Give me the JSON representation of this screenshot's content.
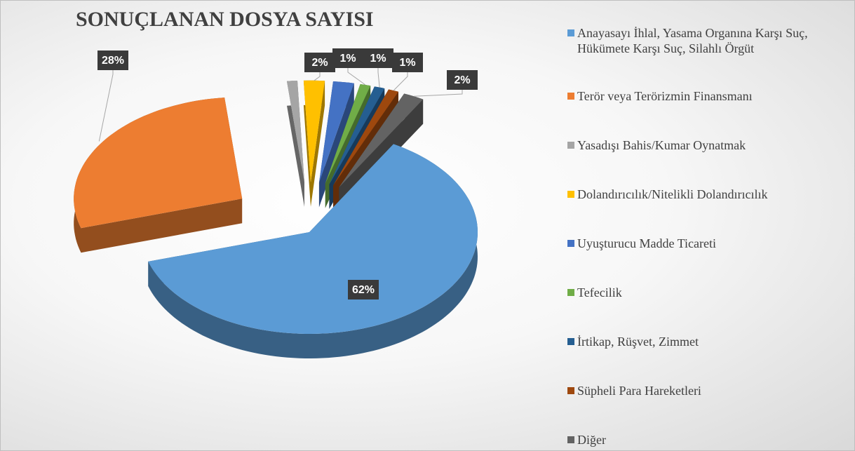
{
  "chart_data": {
    "type": "pie",
    "title": "SONUÇLANAN DOSYA SAYISI",
    "categories": [
      "Anayasayı İhlal, Yasama Organına Karşı Suç, Hükümete Karşı Suç, Silahlı Örgüt",
      "Terör veya Terörizmin Finansmanı",
      "Yasadışı Bahis/Kumar Oynatmak",
      "Dolandırıcılık/Nitelikli Dolandırıcılık",
      "Uyuşturucu Madde Ticareti",
      "Tefecilik",
      "İrtikap, Rüşvet, Zimmet",
      "Süpheli Para Hareketleri",
      "Diğer"
    ],
    "values": [
      62,
      28,
      1,
      2,
      2,
      1,
      1,
      1,
      2
    ],
    "value_labels": [
      "62%",
      "28%",
      null,
      "2%",
      null,
      "1%",
      "1%",
      "1%",
      "2%"
    ],
    "colors": [
      "#5b9bd5",
      "#ed7d31",
      "#a5a5a5",
      "#ffc000",
      "#4472c4",
      "#70ad47",
      "#255e91",
      "#9e480e",
      "#636363"
    ],
    "legend": "right"
  }
}
